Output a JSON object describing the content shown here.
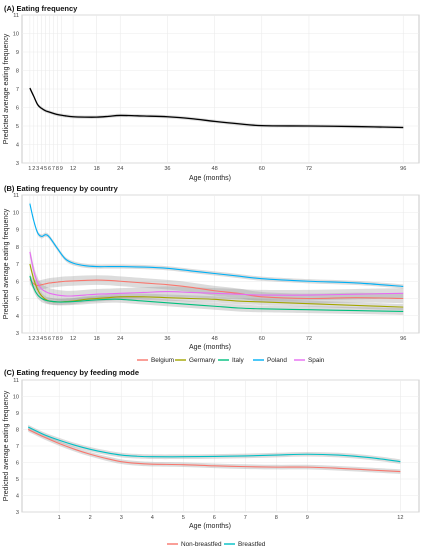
{
  "colors": {
    "Belgium": "#f8766d",
    "Germany": "#a3a500",
    "Italy": "#00bf7d",
    "Poland": "#00b0f6",
    "Spain": "#e76bf3",
    "Non-breastfed": "#f8766d",
    "Breastfed": "#00bfc4",
    "overall": "#000000",
    "ribbon": "#9a9a9a",
    "grid": "#ebebeb",
    "panel_border": "#bdbdbd"
  },
  "chart_data": [
    {
      "type": "line",
      "title": "(A)  Eating frequency",
      "xlabel": "Age (months)",
      "ylabel": "Predicted average eating frequency",
      "ylim": [
        3,
        11
      ],
      "yticks": [
        3,
        4,
        5,
        6,
        7,
        8,
        9,
        10,
        11
      ],
      "xlim": [
        -1,
        100
      ],
      "xticks": [
        1,
        2,
        3,
        4,
        5,
        6,
        7,
        8,
        9,
        12,
        18,
        24,
        36,
        48,
        60,
        72,
        96
      ],
      "grid": true,
      "legend": "none",
      "series": [
        {
          "color_key": "overall",
          "ribbon": 0.09,
          "x": [
            1,
            2,
            3,
            4,
            5,
            6,
            8,
            10,
            12,
            15,
            18,
            21,
            24,
            30,
            36,
            42,
            48,
            54,
            60,
            72,
            84,
            96
          ],
          "y": [
            7.05,
            6.6,
            6.15,
            5.95,
            5.82,
            5.75,
            5.62,
            5.55,
            5.5,
            5.48,
            5.48,
            5.52,
            5.57,
            5.54,
            5.5,
            5.4,
            5.25,
            5.12,
            5.02,
            5.0,
            4.97,
            4.92
          ]
        }
      ]
    },
    {
      "type": "line",
      "title": "(B)  Eating frequency by country",
      "xlabel": "Age (months)",
      "ylabel": "Predicted average eating frequency",
      "ylim": [
        3,
        11
      ],
      "yticks": [
        3,
        4,
        5,
        6,
        7,
        8,
        9,
        10,
        11
      ],
      "xlim": [
        -1,
        100
      ],
      "xticks": [
        1,
        2,
        3,
        4,
        5,
        6,
        7,
        8,
        9,
        12,
        18,
        24,
        36,
        48,
        60,
        72,
        96
      ],
      "grid": true,
      "legend": "bottom",
      "series": [
        {
          "name": "Belgium",
          "color_key": "Belgium",
          "ribbon": 0.28,
          "x": [
            1,
            2,
            3,
            4,
            5,
            6,
            8,
            10,
            12,
            15,
            18,
            21,
            24,
            30,
            36,
            42,
            48,
            54,
            60,
            72,
            84,
            96
          ],
          "y": [
            6.1,
            5.85,
            5.75,
            5.8,
            5.85,
            5.9,
            5.95,
            6.0,
            6.02,
            6.05,
            6.07,
            6.05,
            6.0,
            5.9,
            5.8,
            5.65,
            5.45,
            5.3,
            5.1,
            5.0,
            5.05,
            5.0
          ]
        },
        {
          "name": "Germany",
          "color_key": "Germany",
          "ribbon": 0.18,
          "x": [
            1,
            2,
            3,
            4,
            5,
            6,
            8,
            10,
            12,
            15,
            18,
            21,
            24,
            30,
            36,
            42,
            48,
            54,
            60,
            72,
            84,
            96
          ],
          "y": [
            7.0,
            6.1,
            5.5,
            5.15,
            4.95,
            4.85,
            4.8,
            4.82,
            4.85,
            4.95,
            5.0,
            5.05,
            5.1,
            5.1,
            5.05,
            5.0,
            4.95,
            4.85,
            4.8,
            4.7,
            4.6,
            4.5
          ]
        },
        {
          "name": "Italy",
          "color_key": "Italy",
          "ribbon": 0.2,
          "x": [
            1,
            2,
            3,
            4,
            5,
            6,
            8,
            10,
            12,
            15,
            18,
            21,
            24,
            30,
            36,
            42,
            48,
            54,
            60,
            72,
            84,
            96
          ],
          "y": [
            6.3,
            5.6,
            5.2,
            5.0,
            4.9,
            4.85,
            4.8,
            4.8,
            4.82,
            4.87,
            4.92,
            4.95,
            4.95,
            4.85,
            4.75,
            4.65,
            4.55,
            4.45,
            4.4,
            4.35,
            4.3,
            4.25
          ]
        },
        {
          "name": "Poland",
          "color_key": "Poland",
          "ribbon": 0.12,
          "x": [
            1,
            2,
            3,
            4,
            5,
            6,
            8,
            10,
            12,
            15,
            18,
            21,
            24,
            30,
            36,
            42,
            48,
            54,
            60,
            72,
            84,
            96
          ],
          "y": [
            10.5,
            9.5,
            8.8,
            8.6,
            8.7,
            8.55,
            7.9,
            7.3,
            7.05,
            6.9,
            6.85,
            6.85,
            6.85,
            6.82,
            6.75,
            6.6,
            6.45,
            6.3,
            6.15,
            6.0,
            5.9,
            5.7
          ]
        },
        {
          "name": "Spain",
          "color_key": "Spain",
          "ribbon": 0.3,
          "x": [
            1,
            2,
            3,
            4,
            5,
            6,
            8,
            10,
            12,
            15,
            18,
            21,
            24,
            30,
            36,
            42,
            48,
            54,
            60,
            72,
            84,
            96
          ],
          "y": [
            7.7,
            6.6,
            5.9,
            5.55,
            5.4,
            5.3,
            5.2,
            5.15,
            5.15,
            5.2,
            5.25,
            5.27,
            5.3,
            5.35,
            5.4,
            5.35,
            5.3,
            5.25,
            5.2,
            5.2,
            5.25,
            5.3
          ]
        }
      ]
    },
    {
      "type": "line",
      "title": "(C)  Eating frequency by feeding mode",
      "xlabel": "Age (months)",
      "ylabel": "Predicted average eating frequency",
      "ylim": [
        3,
        11
      ],
      "yticks": [
        3,
        4,
        5,
        6,
        7,
        8,
        9,
        10,
        11
      ],
      "xlim": [
        -0.2,
        12.6
      ],
      "xticks": [
        1,
        2,
        3,
        4,
        5,
        6,
        7,
        8,
        9,
        12
      ],
      "grid": true,
      "legend": "bottom",
      "series": [
        {
          "name": "Non-breastfed",
          "color_key": "Non-breastfed",
          "ribbon": 0.14,
          "x": [
            0,
            0.5,
            1,
            1.5,
            2,
            2.5,
            3,
            3.5,
            4,
            5,
            6,
            7,
            8,
            9,
            10,
            11,
            12
          ],
          "y": [
            8.0,
            7.55,
            7.15,
            6.8,
            6.5,
            6.25,
            6.05,
            5.95,
            5.9,
            5.87,
            5.8,
            5.75,
            5.72,
            5.72,
            5.65,
            5.55,
            5.45
          ]
        },
        {
          "name": "Breastfed",
          "color_key": "Breastfed",
          "ribbon": 0.14,
          "x": [
            0,
            0.5,
            1,
            1.5,
            2,
            2.5,
            3,
            3.5,
            4,
            5,
            6,
            7,
            8,
            9,
            10,
            11,
            12
          ],
          "y": [
            8.15,
            7.7,
            7.35,
            7.05,
            6.8,
            6.6,
            6.45,
            6.38,
            6.35,
            6.35,
            6.37,
            6.4,
            6.45,
            6.5,
            6.45,
            6.3,
            6.05
          ]
        }
      ]
    }
  ]
}
